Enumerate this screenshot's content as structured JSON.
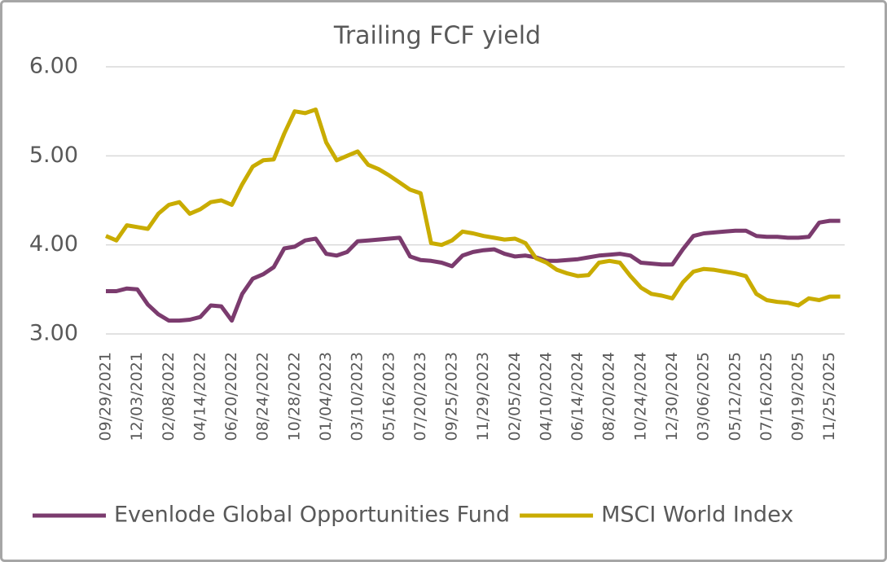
{
  "chart_data": {
    "type": "line",
    "title": "Trailing FCF yield",
    "categories": [
      "09/29/2021",
      null,
      null,
      "12/03/2021",
      null,
      null,
      "02/08/2022",
      null,
      null,
      "04/14/2022",
      null,
      null,
      "06/20/2022",
      null,
      null,
      "08/24/2022",
      null,
      null,
      "10/28/2022",
      null,
      null,
      "01/04/2023",
      null,
      null,
      "03/10/2023",
      null,
      null,
      "05/16/2023",
      null,
      null,
      "07/20/2023",
      null,
      null,
      "09/25/2023",
      null,
      null,
      "11/29/2023",
      null,
      null,
      "02/05/2024",
      null,
      null,
      "04/10/2024",
      null,
      null,
      "06/14/2024",
      null,
      null,
      "08/20/2024",
      null,
      null,
      "10/24/2024",
      null,
      null,
      "12/30/2024",
      null,
      null,
      "03/06/2025",
      null,
      null,
      "05/12/2025",
      null,
      null,
      "07/16/2025",
      null,
      null,
      "09/19/2025",
      null,
      null,
      "11/25/2025",
      null
    ],
    "series": [
      {
        "name": "Evenlode Global Opportunities Fund",
        "color": "#7b3b6e",
        "values": [
          3.48,
          3.48,
          3.51,
          3.5,
          3.33,
          3.22,
          3.15,
          3.15,
          3.16,
          3.19,
          3.32,
          3.31,
          3.15,
          3.45,
          3.62,
          3.67,
          3.75,
          3.96,
          3.98,
          4.05,
          4.07,
          3.9,
          3.88,
          3.92,
          4.04,
          4.05,
          4.06,
          4.07,
          4.08,
          3.87,
          3.83,
          3.82,
          3.8,
          3.76,
          3.88,
          3.92,
          3.94,
          3.95,
          3.9,
          3.87,
          3.88,
          3.86,
          3.82,
          3.82,
          3.83,
          3.84,
          3.86,
          3.88,
          3.89,
          3.9,
          3.88,
          3.8,
          3.79,
          3.78,
          3.78,
          3.95,
          4.1,
          4.13,
          4.14,
          4.15,
          4.16,
          4.16,
          4.1,
          4.09,
          4.09,
          4.08,
          4.08,
          4.09,
          4.25,
          4.27,
          4.27
        ]
      },
      {
        "name": "MSCI World Index",
        "color": "#c9ac00",
        "values": [
          4.1,
          4.05,
          4.22,
          4.2,
          4.18,
          4.35,
          4.45,
          4.48,
          4.35,
          4.4,
          4.48,
          4.5,
          4.45,
          4.68,
          4.88,
          4.95,
          4.96,
          5.25,
          5.5,
          5.48,
          5.52,
          5.15,
          4.95,
          5.0,
          5.05,
          4.9,
          4.85,
          4.78,
          4.7,
          4.62,
          4.58,
          4.02,
          4.0,
          4.05,
          4.15,
          4.13,
          4.1,
          4.08,
          4.06,
          4.07,
          4.02,
          3.85,
          3.8,
          3.72,
          3.68,
          3.65,
          3.66,
          3.8,
          3.82,
          3.8,
          3.65,
          3.52,
          3.45,
          3.43,
          3.4,
          3.58,
          3.7,
          3.73,
          3.72,
          3.7,
          3.68,
          3.65,
          3.45,
          3.38,
          3.36,
          3.35,
          3.32,
          3.4,
          3.38,
          3.42,
          3.42
        ]
      }
    ],
    "ylim": [
      3,
      6
    ],
    "yticks": [
      {
        "value": 3,
        "label": "3.00"
      },
      {
        "value": 4,
        "label": "4.00"
      },
      {
        "value": 5,
        "label": "5.00"
      },
      {
        "value": 6,
        "label": "6.00"
      }
    ],
    "grid": true,
    "legend": "bottom"
  }
}
